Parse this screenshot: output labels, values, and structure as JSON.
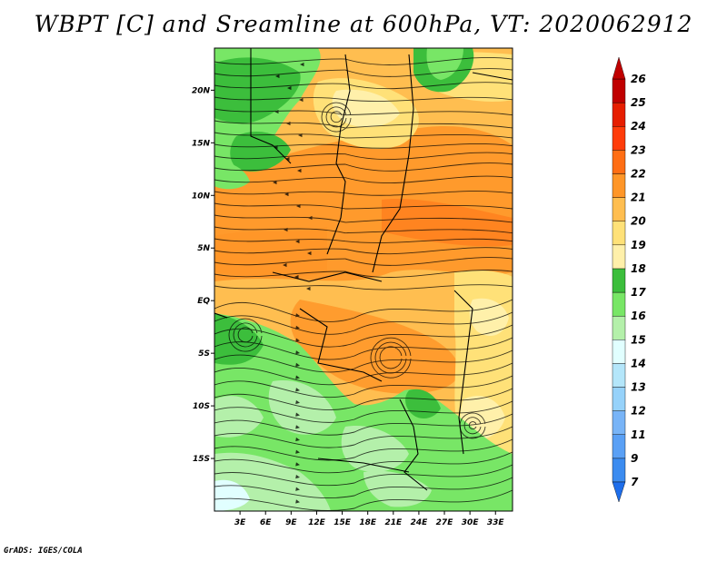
{
  "title": "WBPT [C] and Sreamline at 600hPa, VT: 2020062912",
  "credit": "GrADS: IGES/COLA",
  "map": {
    "lon_range": [
      0,
      35
    ],
    "lat_range": [
      -20,
      24
    ],
    "x_ticks": [
      "3E",
      "6E",
      "9E",
      "12E",
      "15E",
      "18E",
      "21E",
      "24E",
      "27E",
      "30E",
      "33E"
    ],
    "x_tick_values": [
      3,
      6,
      9,
      12,
      15,
      18,
      21,
      24,
      27,
      30,
      33
    ],
    "y_ticks": [
      "20N",
      "15N",
      "10N",
      "5N",
      "EQ",
      "5S",
      "10S",
      "15S"
    ],
    "y_tick_values": [
      20,
      15,
      10,
      5,
      0,
      -5,
      -10,
      -15
    ]
  },
  "legend": {
    "levels": [
      "7",
      "9",
      "11",
      "12",
      "13",
      "14",
      "15",
      "16",
      "17",
      "18",
      "19",
      "20",
      "21",
      "22",
      "23",
      "24",
      "25",
      "26"
    ],
    "colors": [
      "#1e6eeb",
      "#3c8cf0",
      "#5aa0f5",
      "#78b4f7",
      "#96d2fa",
      "#b4e6fa",
      "#e1ffff",
      "#b4f0aa",
      "#78e666",
      "#3cbe3c",
      "#fff0aa",
      "#ffe178",
      "#ffbe50",
      "#ff9628",
      "#ff6e14",
      "#ff3c0a",
      "#e61e00",
      "#c00000"
    ]
  }
}
